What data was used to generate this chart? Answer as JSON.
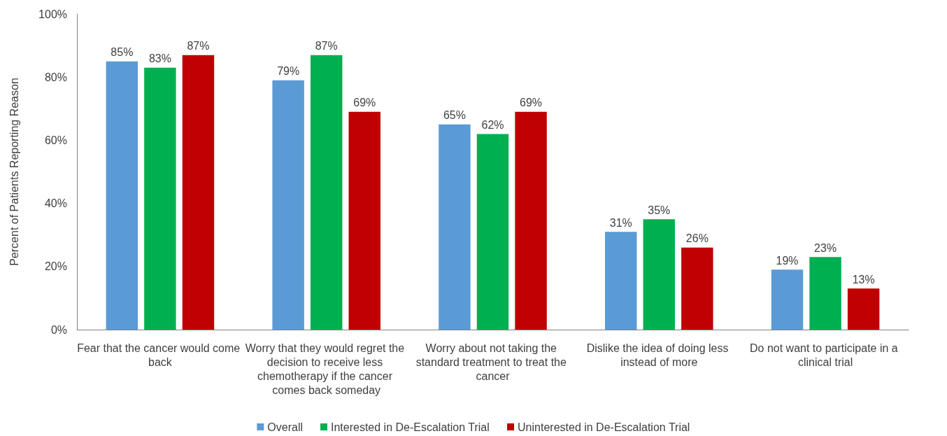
{
  "chart_data": {
    "type": "bar",
    "ylabel": "Percent of Patients Reporting Reason",
    "categories": [
      "Fear that the cancer would come back",
      "Worry that they would regret the decision to receive less chemotherapy if the cancer comes back someday",
      "Worry about not taking the standard treatment to treat the cancer",
      "Dislike the idea of doing less instead of more",
      "Do not want to participate in a clinical trial"
    ],
    "series": [
      {
        "name": "Overall",
        "color": "#5b9bd5",
        "values": [
          85,
          79,
          65,
          31,
          19
        ],
        "value_labels": [
          "85%",
          "79%",
          "65%",
          "31%",
          "19%"
        ]
      },
      {
        "name": "Interested in De-Escalation Trial",
        "color": "#00b050",
        "values": [
          83,
          87,
          62,
          35,
          23
        ],
        "value_labels": [
          "83%",
          "87%",
          "62%",
          "35%",
          "23%"
        ]
      },
      {
        "name": "Uninterested in De-Escalation Trial",
        "color": "#c00000",
        "values": [
          87,
          69,
          69,
          26,
          13
        ],
        "value_labels": [
          "87%",
          "69%",
          "69%",
          "26%",
          "13%"
        ]
      }
    ],
    "ylim": [
      0,
      100
    ],
    "yticks": [
      {
        "value": 0,
        "label": "0%"
      },
      {
        "value": 20,
        "label": "20%"
      },
      {
        "value": 40,
        "label": "40%"
      },
      {
        "value": 60,
        "label": "60%"
      },
      {
        "value": 80,
        "label": "80%"
      },
      {
        "value": 100,
        "label": "100%"
      }
    ],
    "grid": false,
    "legend": "bottom"
  }
}
